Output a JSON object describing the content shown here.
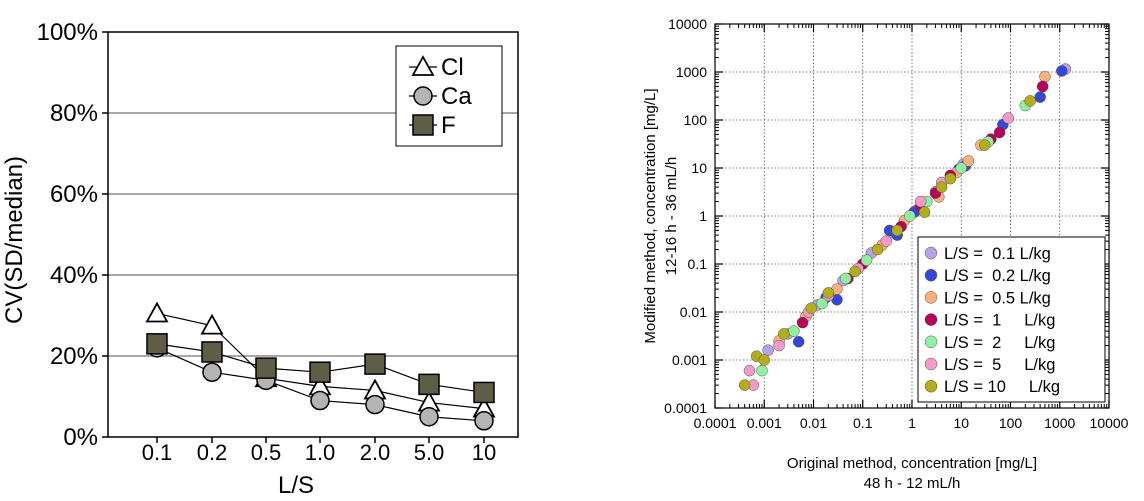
{
  "chart_data": [
    {
      "type": "line",
      "title": "",
      "xlabel": "L/S",
      "ylabel": "CV(SD/median)",
      "categories": [
        "0.1",
        "0.2",
        "0.5",
        "1.0",
        "2.0",
        "5.0",
        "10"
      ],
      "y_ticks": [
        "0%",
        "20%",
        "40%",
        "60%",
        "80%",
        "100%"
      ],
      "ylim": [
        0,
        100
      ],
      "grid": "horizontal",
      "legend_position": "top-right",
      "series": [
        {
          "name": "Cl",
          "marker": "triangle",
          "color": "#ffffff",
          "values": [
            30.5,
            27.5,
            14.5,
            12.5,
            11.5,
            8.5,
            7
          ]
        },
        {
          "name": "Ca",
          "marker": "circle",
          "color": "#b4b4b4",
          "values": [
            22,
            16,
            14,
            9,
            8,
            5,
            4
          ]
        },
        {
          "name": "F",
          "marker": "square",
          "color": "#5e5d45",
          "values": [
            23,
            21,
            17,
            16,
            18,
            13,
            11
          ]
        }
      ]
    },
    {
      "type": "scatter",
      "title": "",
      "xlabel": "Original method, concentration [mg/L]",
      "xlabel2": "48 h - 12 mL/h",
      "ylabel": "Modified method, concentration [mg/L]",
      "ylabel2": "12-16 h - 36 mL/h",
      "x_scale": "log",
      "y_scale": "log",
      "xlim": [
        0.0001,
        10000
      ],
      "ylim": [
        0.0001,
        10000
      ],
      "x_ticks": [
        "0.0001",
        "0.001",
        "0.01",
        "0.1",
        "1",
        "10",
        "100",
        "1000",
        "10000"
      ],
      "y_ticks": [
        "0.0001",
        "0.001",
        "0.01",
        "0.1",
        "1",
        "10",
        "100",
        "1000",
        "10000"
      ],
      "grid": "dotted",
      "legend_position": "bottom-right",
      "series": [
        {
          "name": "L/S =  0.1 L/kg",
          "color": "#b7a2e6",
          "points": [
            [
              0.0012,
              0.0016
            ],
            [
              0.003,
              0.0035
            ],
            [
              0.012,
              0.014
            ],
            [
              0.04,
              0.045
            ],
            [
              0.15,
              0.17
            ],
            [
              0.4,
              0.45
            ],
            [
              1.2,
              1.3
            ],
            [
              3,
              3.2
            ],
            [
              11,
              12
            ],
            [
              1300,
              1150
            ]
          ]
        },
        {
          "name": "L/S =  0.2 L/kg",
          "color": "#3547d8",
          "points": [
            [
              0.005,
              0.0024
            ],
            [
              0.018,
              0.02
            ],
            [
              0.03,
              0.018
            ],
            [
              0.35,
              0.5
            ],
            [
              0.5,
              0.4
            ],
            [
              1.1,
              1.2
            ],
            [
              9,
              9.5
            ],
            [
              12,
              11
            ],
            [
              70,
              80
            ],
            [
              400,
              300
            ],
            [
              1100,
              1050
            ]
          ]
        },
        {
          "name": "L/S =  0.5 L/kg",
          "color": "#f6b17f",
          "points": [
            [
              0.002,
              0.0025
            ],
            [
              0.007,
              0.008
            ],
            [
              0.03,
              0.03
            ],
            [
              0.25,
              0.25
            ],
            [
              0.7,
              0.8
            ],
            [
              3.5,
              2.5
            ],
            [
              8,
              8
            ],
            [
              14,
              14
            ],
            [
              25,
              30
            ],
            [
              500,
              800
            ]
          ]
        },
        {
          "name": "L/S =  1     L/kg",
          "color": "#b8005a",
          "points": [
            [
              0.006,
              0.006
            ],
            [
              0.05,
              0.05
            ],
            [
              0.1,
              0.1
            ],
            [
              0.6,
              0.6
            ],
            [
              1.5,
              1.6
            ],
            [
              3,
              3
            ],
            [
              6,
              7
            ],
            [
              40,
              40
            ],
            [
              60,
              55
            ],
            [
              450,
              500
            ]
          ]
        },
        {
          "name": "L/S =  2     L/kg",
          "color": "#8ff0a0",
          "points": [
            [
              0.0009,
              0.0006
            ],
            [
              0.004,
              0.004
            ],
            [
              0.015,
              0.015
            ],
            [
              0.045,
              0.05
            ],
            [
              0.12,
              0.12
            ],
            [
              0.9,
              1
            ],
            [
              2,
              2
            ],
            [
              10,
              10
            ],
            [
              35,
              35
            ],
            [
              200,
              200
            ]
          ]
        },
        {
          "name": "L/S =  5     L/kg",
          "color": "#f49ac7",
          "points": [
            [
              0.0005,
              0.0006
            ],
            [
              0.0006,
              0.0003
            ],
            [
              0.002,
              0.002
            ],
            [
              0.008,
              0.01
            ],
            [
              0.02,
              0.022
            ],
            [
              0.08,
              0.08
            ],
            [
              0.3,
              0.3
            ],
            [
              1.5,
              2
            ],
            [
              4,
              5
            ],
            [
              90,
              110
            ]
          ]
        },
        {
          "name": "L/S = 10     L/kg",
          "color": "#b3ad1c",
          "points": [
            [
              0.0004,
              0.0003
            ],
            [
              0.0007,
              0.0012
            ],
            [
              0.001,
              0.001
            ],
            [
              0.0025,
              0.0035
            ],
            [
              0.009,
              0.012
            ],
            [
              0.02,
              0.025
            ],
            [
              0.07,
              0.07
            ],
            [
              0.2,
              0.2
            ],
            [
              0.5,
              0.5
            ],
            [
              1.8,
              1.2
            ],
            [
              4,
              4
            ],
            [
              6,
              6
            ],
            [
              30,
              30
            ],
            [
              250,
              250
            ]
          ]
        }
      ]
    }
  ]
}
